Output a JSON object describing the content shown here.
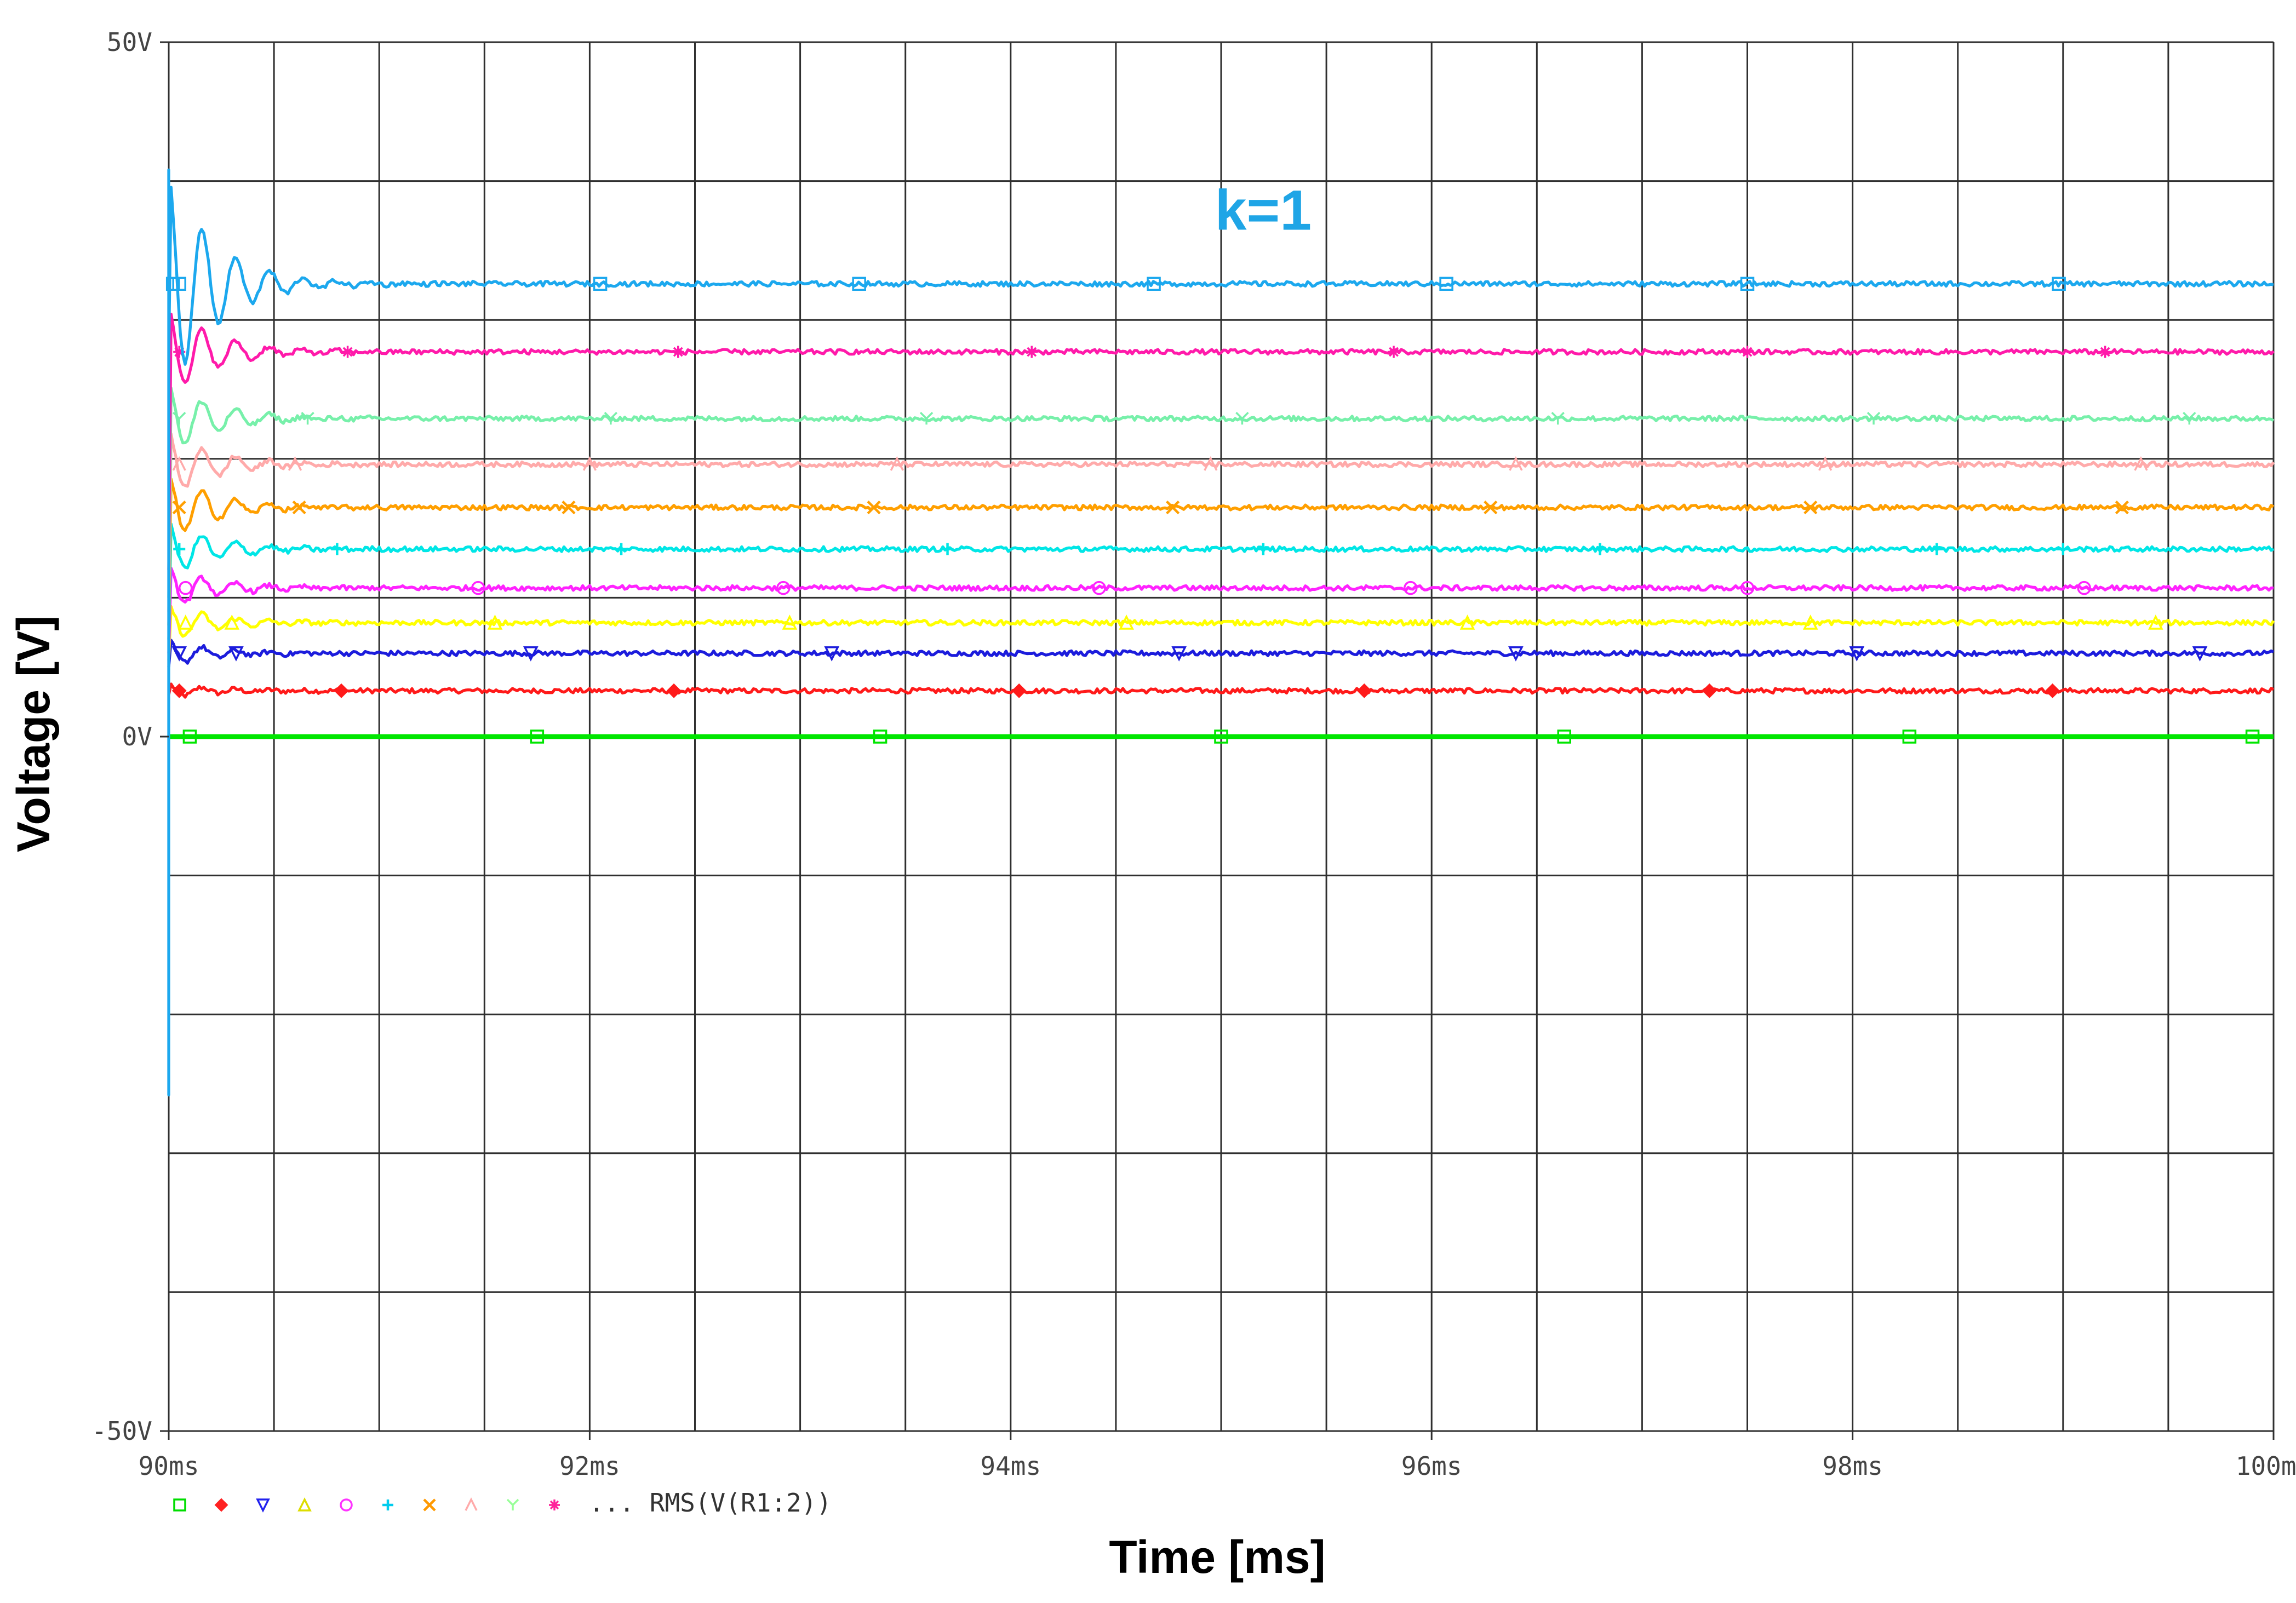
{
  "chart_data": {
    "type": "line",
    "xlabel": "Time [ms]",
    "ylabel": "Voltage [V]",
    "xlim": [
      90,
      100
    ],
    "ylim": [
      -50,
      50
    ],
    "x_ticks": [
      90,
      92,
      94,
      96,
      98,
      100
    ],
    "x_tick_labels": [
      "90ms",
      "92ms",
      "94ms",
      "96ms",
      "98ms",
      "100ms"
    ],
    "y_ticks": [
      -50,
      0,
      50
    ],
    "y_tick_labels": [
      "-50V",
      "0V",
      "50V"
    ],
    "grid": true,
    "annotation": {
      "text": "k=1",
      "x": 95.2,
      "y": 36.5,
      "color": "#1fa5e6"
    },
    "legend": {
      "placement": "bottom-left",
      "text": "... RMS(V(R1:2))",
      "markers": [
        "square",
        "diamond",
        "triangle-down",
        "triangle-up",
        "circle",
        "plus",
        "x",
        "lambda",
        "y-mark",
        "star"
      ],
      "colors": [
        "#00dd00",
        "#ff2222",
        "#2222ee",
        "#dddd00",
        "#ff33ff",
        "#00ccee",
        "#ff9900",
        "#ffaaaa",
        "#99ff99",
        "#ff2299"
      ]
    },
    "series": [
      {
        "color": "#00e600",
        "marker": "square",
        "steady": 0.0,
        "peak": 0.0,
        "start": 0.0,
        "linewidth": 4,
        "marker_x": [
          90.1,
          91.75,
          93.38,
          95.0,
          96.63,
          98.27,
          99.9
        ]
      },
      {
        "color": "#ff1a1a",
        "marker": "diamond",
        "steady": 3.3,
        "peak": 3.8,
        "start": 3.0,
        "linewidth": 2.4,
        "marker_x": [
          90.05,
          90.82,
          92.4,
          94.04,
          95.68,
          97.32,
          98.95
        ]
      },
      {
        "color": "#1c1cdc",
        "marker": "triangle-down",
        "steady": 6.0,
        "peak": 6.9,
        "start": 5.0,
        "linewidth": 2.4,
        "marker_x": [
          90.05,
          90.32,
          91.72,
          93.15,
          94.8,
          96.4,
          98.02,
          99.65
        ]
      },
      {
        "color": "#ffff00",
        "marker": "triangle-up",
        "steady": 8.2,
        "peak": 9.5,
        "start": 5.5,
        "linewidth": 2.4,
        "marker_x": [
          90.08,
          90.3,
          91.55,
          92.95,
          94.55,
          96.17,
          97.8,
          99.44
        ]
      },
      {
        "color": "#ff22ff",
        "marker": "circle",
        "steady": 10.7,
        "peak": 12.2,
        "start": 6.0,
        "linewidth": 2.4,
        "marker_x": [
          90.08,
          91.47,
          92.92,
          94.42,
          95.9,
          97.5,
          99.1
        ]
      },
      {
        "color": "#00e6e6",
        "marker": "plus",
        "steady": 13.5,
        "peak": 15.4,
        "start": 7.0,
        "linewidth": 2.4,
        "marker_x": [
          90.05,
          90.8,
          92.15,
          93.7,
          95.2,
          96.8,
          98.4,
          99.0
        ]
      },
      {
        "color": "#ff9f00",
        "marker": "x",
        "steady": 16.5,
        "peak": 18.8,
        "start": 8.0,
        "linewidth": 2.4,
        "marker_x": [
          90.05,
          90.62,
          91.9,
          93.35,
          94.77,
          96.28,
          97.8,
          99.28
        ]
      },
      {
        "color": "#ffaaaa",
        "marker": "lambda",
        "steady": 19.6,
        "peak": 22.0,
        "start": 9.0,
        "linewidth": 2.4,
        "marker_x": [
          90.05,
          90.6,
          92.0,
          93.46,
          94.95,
          96.4,
          97.87,
          99.37
        ]
      },
      {
        "color": "#77f0aa",
        "marker": "y-mark",
        "steady": 22.9,
        "peak": 25.5,
        "start": 10.0,
        "linewidth": 2.4,
        "marker_x": [
          90.05,
          90.66,
          92.1,
          93.6,
          95.1,
          96.6,
          98.1,
          99.6
        ]
      },
      {
        "color": "#ff1aaa",
        "marker": "star",
        "steady": 27.7,
        "peak": 31.0,
        "start": 12.0,
        "linewidth": 2.4,
        "marker_x": [
          90.05,
          90.85,
          92.42,
          94.1,
          95.82,
          97.5,
          99.2
        ]
      },
      {
        "color": "#1ca8ee",
        "marker": "square",
        "steady": 32.6,
        "peak": 40.8,
        "start": 24.0,
        "min": -25.8,
        "linewidth": 2.4,
        "marker_x": [
          90.02,
          90.05,
          92.05,
          93.28,
          94.68,
          96.07,
          97.5,
          98.98
        ]
      }
    ]
  }
}
